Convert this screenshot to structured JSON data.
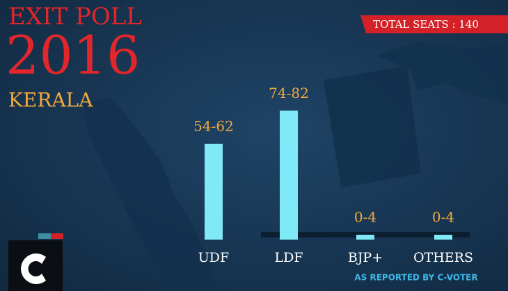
{
  "chart_data": {
    "type": "range-bar",
    "title": "EXIT POLL",
    "subtitle": "2016",
    "region": "KERALA",
    "badge": "TOTAL SEATS : 140",
    "source": "AS REPORTED BY C-VOTER",
    "categories": [
      "UDF",
      "LDF",
      "BJP+",
      "OTHERS"
    ],
    "low": [
      54,
      74,
      0,
      0
    ],
    "high": [
      62,
      82,
      4,
      4
    ],
    "value_labels": [
      "54-62",
      "74-82",
      "0-4",
      "0-4"
    ],
    "color": "#7fe9f7",
    "label_color": "#f2a93b"
  }
}
